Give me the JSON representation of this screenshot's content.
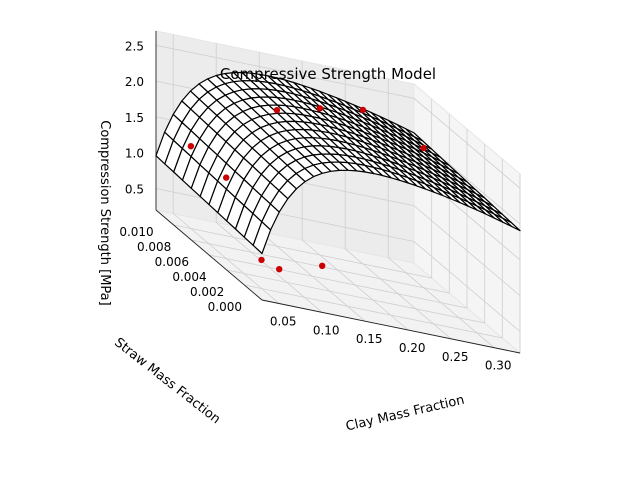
{
  "chart_data": {
    "type": "surface3d",
    "title": "Compressive Strength Model",
    "xlabel": "Clay Mass Fraction",
    "ylabel": "Straw Mass Fraction",
    "zlabel": "Compression Strength [MPa]",
    "xlim": [
      0.03,
      0.33
    ],
    "ylim": [
      0.0,
      0.012
    ],
    "zlim": [
      0.2,
      2.7
    ],
    "x_ticks": [
      "0.05",
      "0.10",
      "0.15",
      "0.20",
      "0.25",
      "0.30"
    ],
    "y_ticks": [
      "0.000",
      "0.002",
      "0.004",
      "0.006",
      "0.008",
      "0.010"
    ],
    "z_ticks": [
      "0.5",
      "1.0",
      "1.5",
      "2.0",
      "2.5"
    ],
    "grid": true,
    "surface": {
      "x_range": [
        0.03,
        0.33
      ],
      "y_range": [
        0.0,
        0.012
      ],
      "x_lines": 30,
      "y_lines": 12,
      "face_color": "#ffffff",
      "edge_color": "#000000",
      "model": "z = 0.85 + 1.6*(1-exp(-(x-0.03)/0.04)) + 9*y - 6*(x-0.03)^2"
    },
    "points": [
      {
        "x": 0.05,
        "y": 0.01,
        "z": 1.35
      },
      {
        "x": 0.05,
        "y": 0.006,
        "z": 1.33
      },
      {
        "x": 0.05,
        "y": 0.002,
        "z": 0.6
      },
      {
        "x": 0.05,
        "y": 0.0,
        "z": 0.68
      },
      {
        "x": 0.1,
        "y": 0.0,
        "z": 0.85
      },
      {
        "x": 0.15,
        "y": 0.01,
        "z": 2.1
      },
      {
        "x": 0.2,
        "y": 0.01,
        "z": 2.25
      },
      {
        "x": 0.25,
        "y": 0.01,
        "z": 2.35
      },
      {
        "x": 0.3,
        "y": 0.008,
        "z": 2.15
      }
    ],
    "point_color": "#cc0000"
  }
}
